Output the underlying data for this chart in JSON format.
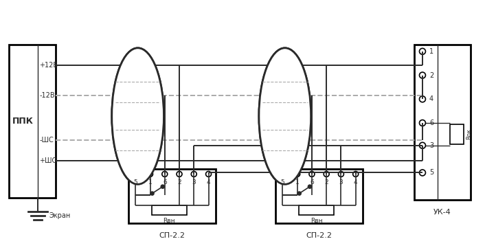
{
  "bg": "#ffffff",
  "lc": "#2a2a2a",
  "dc": "#aaaaaa",
  "ppk_label": "ППК",
  "screen_label": "Экран",
  "uk4_label": "УК-4",
  "rok_label": "Rок",
  "rbn_label": "Rвн",
  "sp22_label": "СП-2.2",
  "sp22_terminal_labels": [
    "5",
    "1",
    "6",
    "2",
    "3",
    "4"
  ],
  "uk4_terminal_labels": [
    "1",
    "2",
    "4",
    "6",
    "3",
    "5"
  ],
  "ppk_terminal_labels": [
    "+12В",
    "-12В",
    "-ШС",
    "+ШС"
  ]
}
